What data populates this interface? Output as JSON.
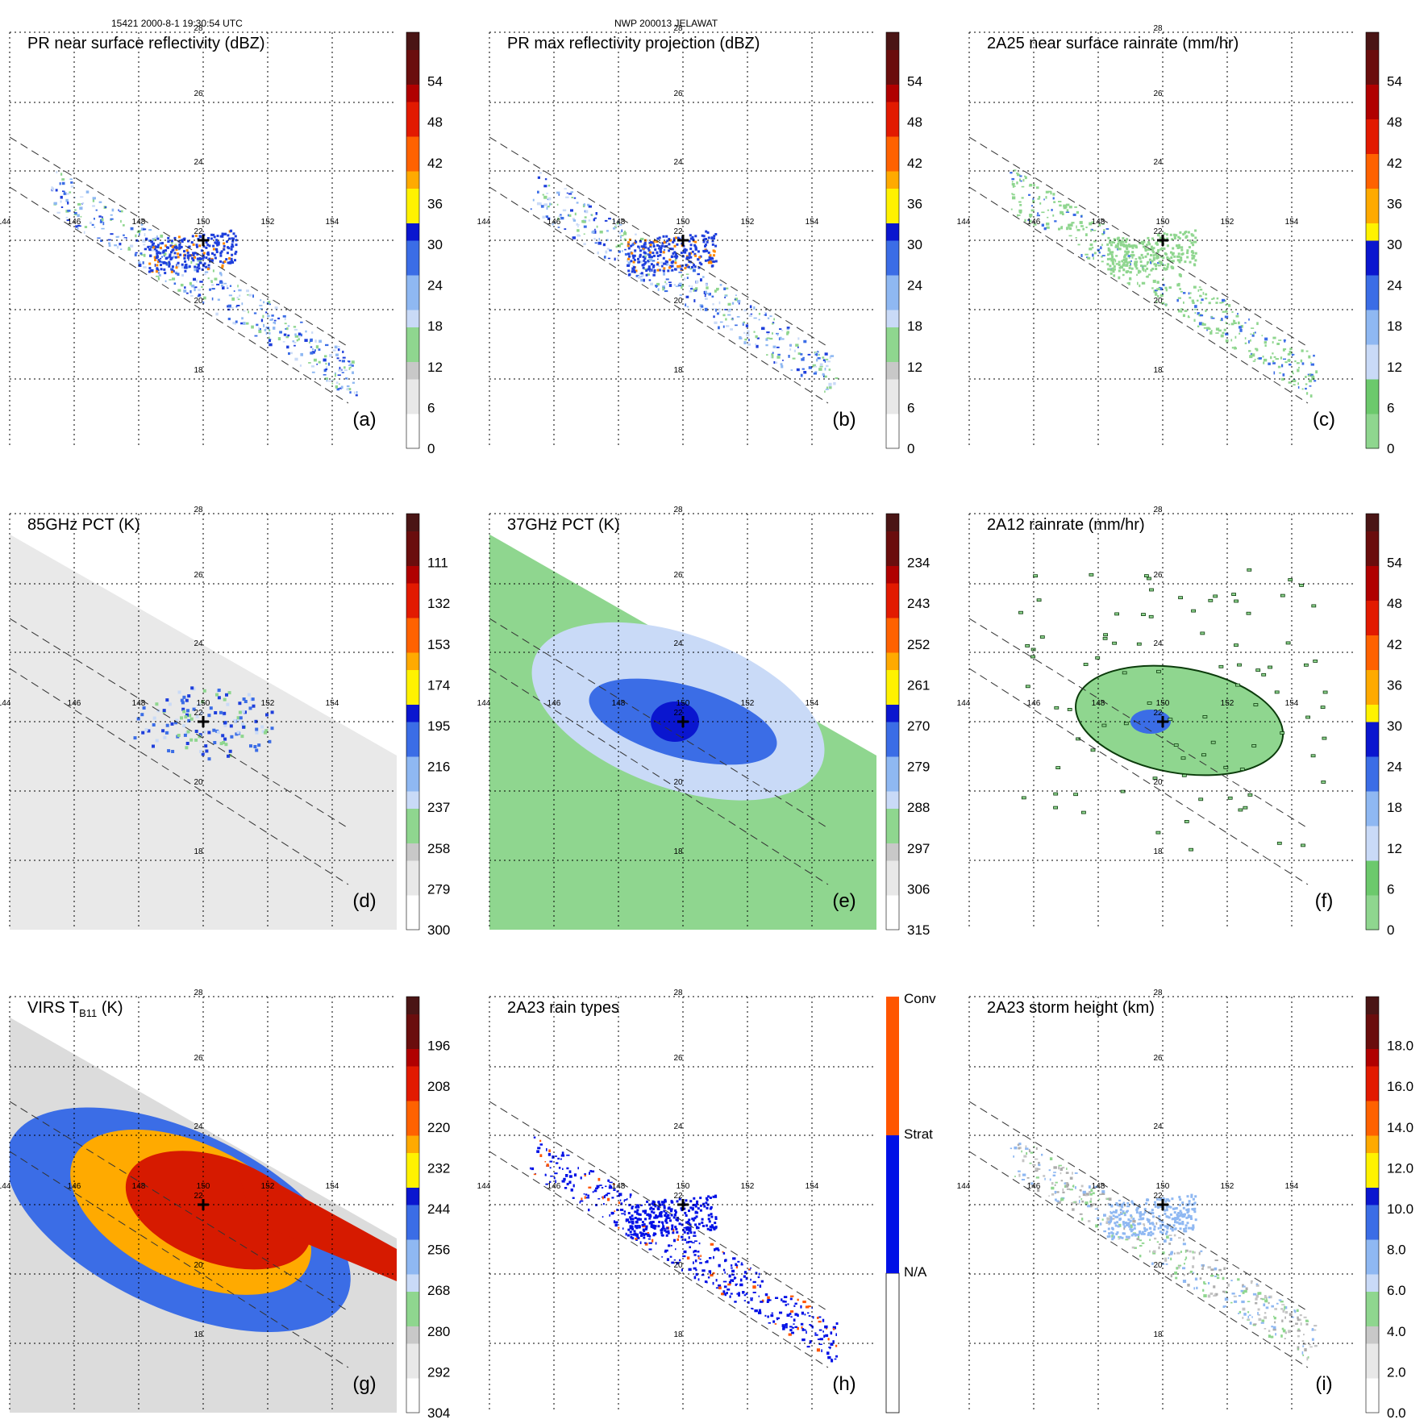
{
  "header": {
    "orbit_time": "15421 2000-8-1 19:30:54 UTC",
    "storm": "NWP 200013 JELAWAT"
  },
  "map": {
    "lon_ticks": [
      "144",
      "146",
      "148",
      "150",
      "152",
      "154"
    ],
    "lat_ticks": [
      "28",
      "26",
      "24",
      "22",
      "20",
      "18"
    ],
    "storm_center": {
      "lon": 150,
      "lat": 22
    }
  },
  "palette": {
    "dbz": [
      "#ffffff",
      "#f2f2f2",
      "#e4e4e4",
      "#d6d6d6",
      "#c4c4c4",
      "#acacac",
      "#8fd68f",
      "#6cc96c",
      "#c9daf7",
      "#9fc2f4",
      "#5f97ec",
      "#3b6de6",
      "#1e3fdc",
      "#0a16cf",
      "#fff200",
      "#ffd200",
      "#ffaa00",
      "#ff8800",
      "#ff6200",
      "#ff3a00",
      "#e21a00",
      "#c40000",
      "#9e0000",
      "#7a0a0a",
      "#5c1010"
    ],
    "green": [
      "#8fd68f",
      "#6cc96c"
    ],
    "rain_types": {
      "conv": "#ff5500",
      "strat": "#0010e6",
      "na": "#ffffff"
    }
  },
  "chart_data": [
    {
      "id": "a",
      "type": "heatmap",
      "title": "PR near surface reflectivity (dBZ)",
      "label": "(a)",
      "colorbar_ticks": [
        "0",
        "6",
        "12",
        "18",
        "24",
        "30",
        "36",
        "42",
        "48",
        "54"
      ]
    },
    {
      "id": "b",
      "type": "heatmap",
      "title": "PR max reflectivity projection (dBZ)",
      "label": "(b)",
      "colorbar_ticks": [
        "0",
        "6",
        "12",
        "18",
        "24",
        "30",
        "36",
        "42",
        "48",
        "54"
      ]
    },
    {
      "id": "c",
      "type": "heatmap",
      "title": "2A25 near surface rainrate (mm/hr)",
      "label": "(c)",
      "colorbar_ticks": [
        "0",
        "6",
        "12",
        "18",
        "24",
        "30",
        "36",
        "42",
        "48",
        "54"
      ]
    },
    {
      "id": "d",
      "type": "heatmap",
      "title": "85GHz PCT (K)",
      "label": "(d)",
      "colorbar_ticks": [
        "300",
        "279",
        "258",
        "237",
        "216",
        "195",
        "174",
        "153",
        "132",
        "111"
      ]
    },
    {
      "id": "e",
      "type": "heatmap",
      "title": "37GHz PCT (K)",
      "label": "(e)",
      "colorbar_ticks": [
        "315",
        "306",
        "297",
        "288",
        "279",
        "270",
        "261",
        "252",
        "243",
        "234"
      ]
    },
    {
      "id": "f",
      "type": "heatmap",
      "title": "2A12 rainrate (mm/hr)",
      "label": "(f)",
      "colorbar_ticks": [
        "0",
        "6",
        "12",
        "18",
        "24",
        "30",
        "36",
        "42",
        "48",
        "54"
      ]
    },
    {
      "id": "g",
      "type": "heatmap",
      "title": "VIRS T",
      "title_sub": "B11",
      "title_tail": " (K)",
      "label": "(g)",
      "colorbar_ticks": [
        "304",
        "292",
        "280",
        "268",
        "256",
        "244",
        "232",
        "220",
        "208",
        "196"
      ]
    },
    {
      "id": "h",
      "type": "heatmap",
      "title": "2A23 rain types",
      "label": "(h)",
      "colorbar_ticks": [
        "N/A",
        "Strat",
        "Conv"
      ]
    },
    {
      "id": "i",
      "type": "heatmap",
      "title": "2A23 storm height (km)",
      "label": "(i)",
      "colorbar_ticks": [
        "0.0",
        "2.0",
        "4.0",
        "6.0",
        "8.0",
        "10.0",
        "12.0",
        "14.0",
        "16.0",
        "18.0"
      ]
    }
  ]
}
